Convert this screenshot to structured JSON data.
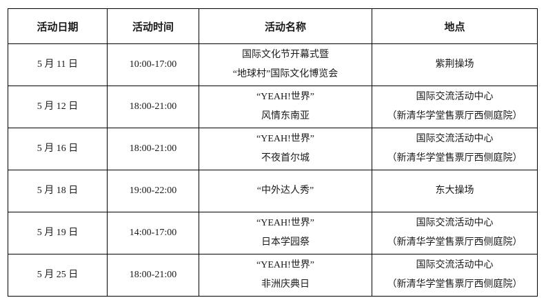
{
  "page": {
    "background_color": "#ffffff",
    "border_color": "#000000",
    "text_color": "#1a1a1a"
  },
  "table": {
    "columns": [
      "活动日期",
      "活动时间",
      "活动名称",
      "地点"
    ],
    "rows": [
      {
        "date": "5 月 11 日",
        "time": "10:00-17:00",
        "name": [
          "国际文化节开幕式暨",
          "“地球村”国际文化博览会"
        ],
        "location": [
          "紫荆操场"
        ]
      },
      {
        "date": "5 月 12 日",
        "time": "18:00-21:00",
        "name": [
          "“YEAH!世界”",
          "风情东南亚"
        ],
        "location": [
          "国际交流活动中心",
          "（新清华学堂售票厅西侧庭院）"
        ]
      },
      {
        "date": "5 月 16 日",
        "time": "18:00-21:00",
        "name": [
          "“YEAH!世界”",
          "不夜首尔城"
        ],
        "location": [
          "国际交流活动中心",
          "（新清华学堂售票厅西侧庭院）"
        ]
      },
      {
        "date": "5 月 18 日",
        "time": "19:00-22:00",
        "name": [
          "“中外达人秀”"
        ],
        "location": [
          "东大操场"
        ]
      },
      {
        "date": "5 月 19 日",
        "time": "14:00-17:00",
        "name": [
          "“YEAH!世界”",
          "日本学园祭"
        ],
        "location": [
          "国际交流活动中心",
          "（新清华学堂售票厅西侧庭院）"
        ]
      },
      {
        "date": "5 月 25 日",
        "time": "18:00-21:00",
        "name": [
          "“YEAH!世界”",
          "非洲庆典日"
        ],
        "location": [
          "国际交流活动中心",
          "（新清华学堂售票厅西侧庭院）"
        ]
      }
    ]
  }
}
